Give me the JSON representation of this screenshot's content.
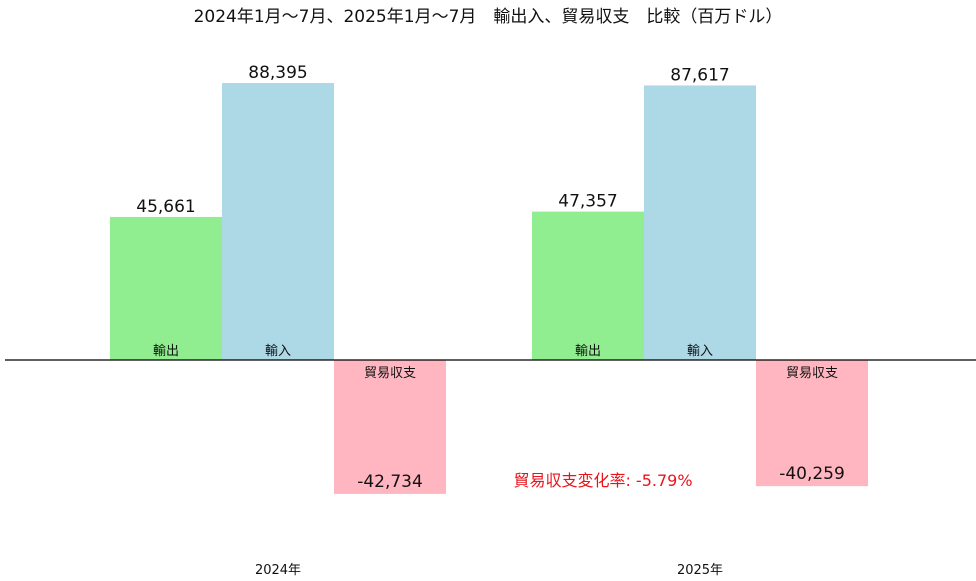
{
  "chart_data": {
    "type": "bar",
    "title": "2024年1月～7月、2025年1月～7月　輸出入、貿易収支　比較（百万ドル）",
    "categories": [
      "2024年",
      "2025年"
    ],
    "series": [
      {
        "name": "輸出",
        "values": [
          45661,
          47357
        ],
        "color": "#90ee90"
      },
      {
        "name": "輸入",
        "values": [
          88395,
          87617
        ],
        "color": "#add8e6"
      },
      {
        "name": "貿易収支",
        "values": [
          -42734,
          -40259
        ],
        "color": "#ffb6c1"
      }
    ],
    "value_labels": [
      [
        "45,661",
        "88,395",
        "-42,734"
      ],
      [
        "47,357",
        "87,617",
        "-40,259"
      ]
    ],
    "annotation": {
      "text": "貿易収支変化率: -5.79%",
      "color": "#e8141c"
    },
    "xlabel": "",
    "ylabel": "",
    "grid": false
  }
}
